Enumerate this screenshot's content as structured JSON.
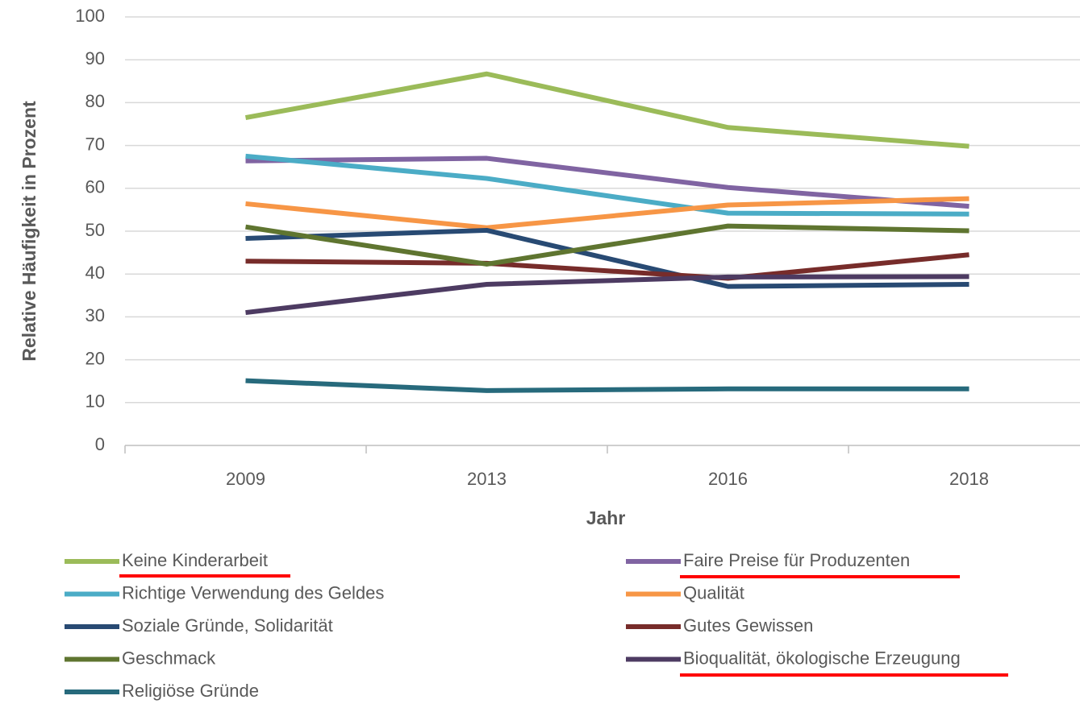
{
  "chart_data": {
    "type": "line",
    "x_label": "Jahr",
    "y_label": "Relative Häufigkeit in Prozent",
    "categories": [
      "2009",
      "2013",
      "2016",
      "2018"
    ],
    "ylim": [
      0,
      100
    ],
    "yticks": [
      0,
      10,
      20,
      30,
      40,
      50,
      60,
      70,
      80,
      90,
      100
    ],
    "grid": true,
    "series": [
      {
        "name": "Keine Kinderarbeit",
        "color": "#9bbb59",
        "values": [
          76.5,
          86.7,
          74.2,
          69.8
        ]
      },
      {
        "name": "Faire Preise für Produzenten",
        "color": "#8064a2",
        "values": [
          66.4,
          67,
          60.2,
          55.8
        ]
      },
      {
        "name": "Richtige Verwendung des Geldes",
        "color": "#4bacc6",
        "values": [
          67.5,
          62.3,
          54.2,
          54
        ]
      },
      {
        "name": "Qualität",
        "color": "#f79646",
        "values": [
          56.4,
          50.8,
          56.1,
          57.6
        ]
      },
      {
        "name": "Soziale Gründe, Solidarität",
        "color": "#284a73",
        "values": [
          48.3,
          50.2,
          37.1,
          37.6
        ]
      },
      {
        "name": "Gutes Gewissen",
        "color": "#772c2a",
        "values": [
          43,
          42.5,
          39,
          44.5
        ]
      },
      {
        "name": "Geschmack",
        "color": "#5f7530",
        "values": [
          51,
          42.3,
          51.2,
          50.1
        ]
      },
      {
        "name": "Bioqualität, ökologische Erzeugung",
        "color": "#4d3b62",
        "values": [
          31,
          37.6,
          39.3,
          39.4
        ]
      },
      {
        "name": "Religiöse Gründe",
        "color": "#276a7c",
        "values": [
          15.1,
          12.8,
          13.2,
          13.2
        ]
      }
    ]
  }
}
